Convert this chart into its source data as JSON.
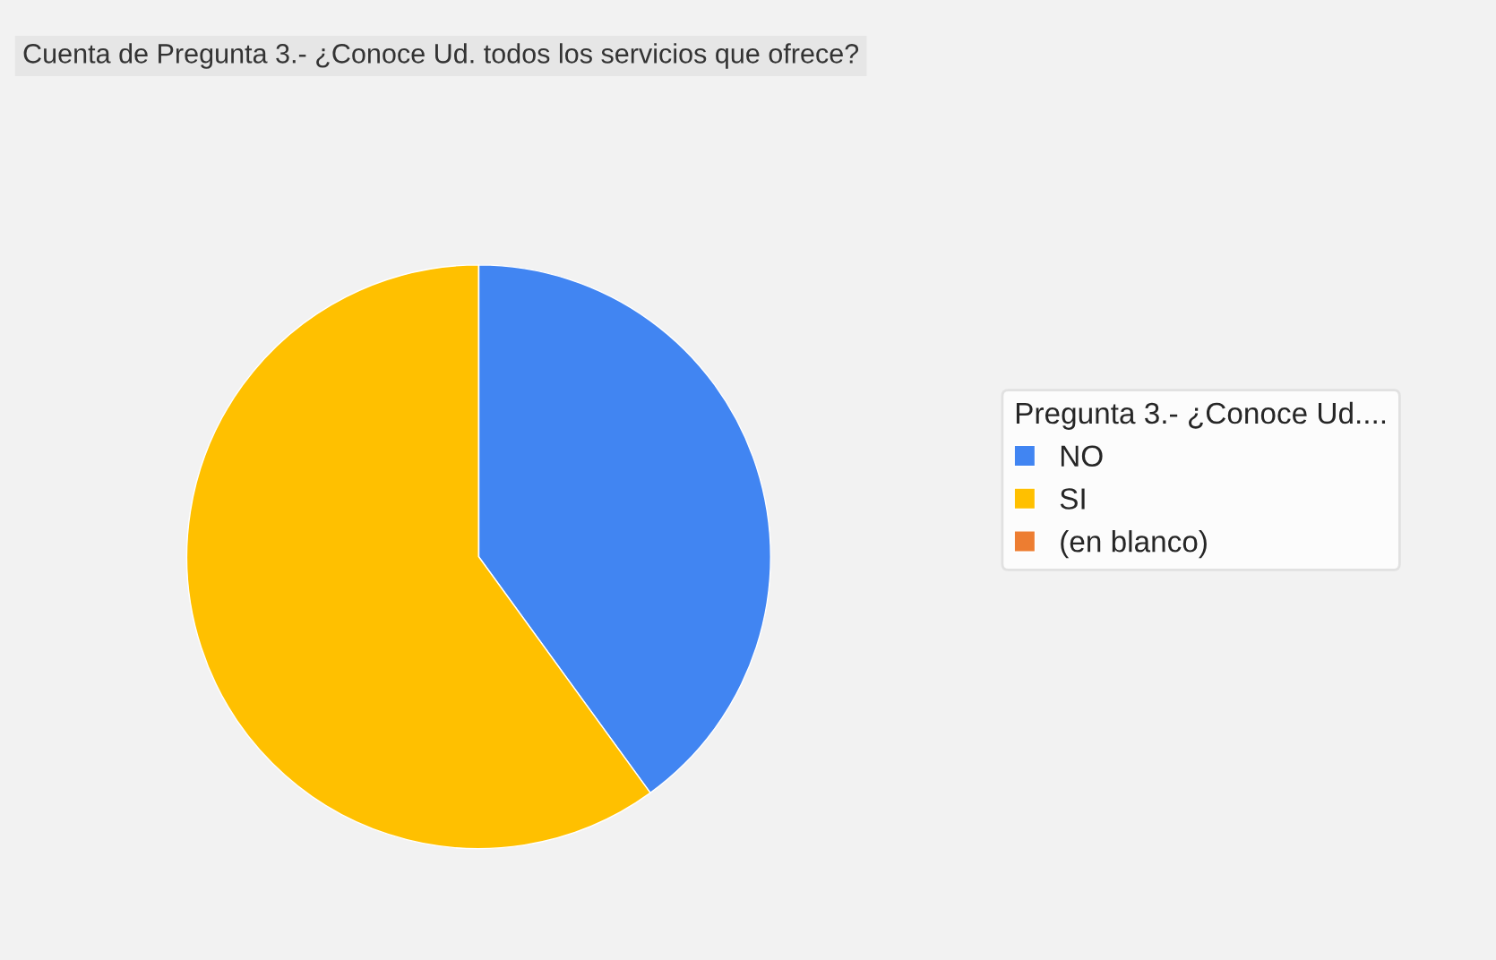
{
  "chart_data": {
    "type": "pie",
    "title": "Cuenta de Pregunta 3.- ¿Conoce Ud. todos los servicios que ofrece?",
    "legend_title": "Pregunta 3.- ¿Conoce Ud....",
    "categories": [
      "NO",
      "SI",
      "(en blanco)"
    ],
    "values": [
      40,
      60,
      0
    ],
    "colors": [
      "#4185f2",
      "#ffc000",
      "#ed7d31"
    ],
    "legend": "right"
  }
}
